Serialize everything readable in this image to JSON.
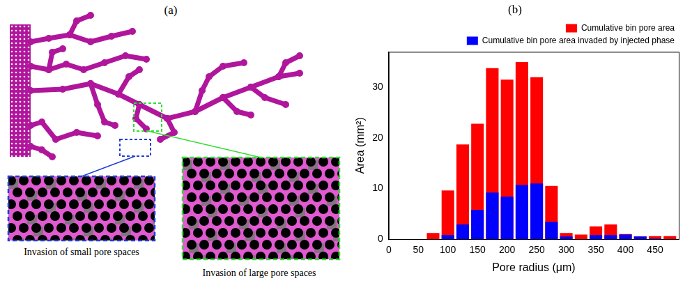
{
  "diagram": {
    "title": "(a)",
    "insets": [
      {
        "caption": "Invasion of small pore spaces",
        "color": "#1f3fd6"
      },
      {
        "caption": "Invasion of large pore spaces",
        "color": "#33dd33"
      }
    ]
  },
  "chart_data": {
    "type": "bar",
    "title": "(b)",
    "x_label": "Pore radius (μm)",
    "y_label": "Area (mm²)",
    "x": [
      75,
      100,
      125,
      150,
      175,
      200,
      225,
      250,
      275,
      300,
      325,
      350,
      375,
      400,
      425,
      450,
      475
    ],
    "series": [
      {
        "name": "Cumulative bin pore area",
        "color": "#ff0000",
        "values": [
          1.2,
          9.6,
          18.7,
          22.8,
          33.8,
          31.5,
          35.0,
          32.0,
          10.5,
          1.2,
          0.9,
          2.5,
          2.9,
          1.0,
          0.5,
          0.6,
          0.6
        ]
      },
      {
        "name": "Cumulative bin pore area invaded by injected phase",
        "color": "#0000ff",
        "values": [
          0,
          0.8,
          2.9,
          5.8,
          9.2,
          8.4,
          10.7,
          11.0,
          3.4,
          0.5,
          0,
          0.8,
          0.8,
          0.9,
          0.5,
          0.1,
          0
        ]
      }
    ],
    "xlim": [
      0,
      490
    ],
    "xticks": [
      0,
      50,
      100,
      150,
      200,
      250,
      300,
      350,
      400,
      450
    ],
    "ylim": [
      0,
      37
    ],
    "yticks": [
      0,
      10,
      20,
      30
    ],
    "grid": false,
    "legend": "top right"
  }
}
